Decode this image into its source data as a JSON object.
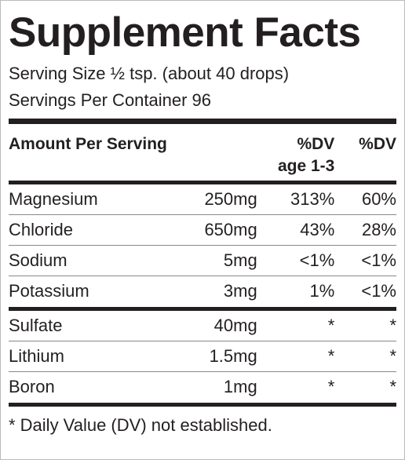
{
  "title": "Supplement Facts",
  "serving_size": "Serving Size ½ tsp. (about 40 drops)",
  "servings_per_container": "Servings Per Container 96",
  "header": {
    "amount": "Amount Per Serving",
    "dv_age": [
      "%DV",
      "age 1-3"
    ],
    "dv": "%DV"
  },
  "groups": [
    [
      [
        "Magnesium",
        "250mg",
        "313%",
        "60%"
      ],
      [
        "Chloride",
        "650mg",
        "43%",
        "28%"
      ],
      [
        "Sodium",
        "5mg",
        "<1%",
        "<1%"
      ],
      [
        "Potassium",
        "3mg",
        "1%",
        "<1%"
      ]
    ],
    [
      [
        "Sulfate",
        "40mg",
        "*",
        "*"
      ],
      [
        "Lithium",
        "1.5mg",
        "*",
        "*"
      ],
      [
        "Boron",
        "1mg",
        "*",
        "*"
      ]
    ]
  ],
  "footnote": "* Daily Value (DV) not established."
}
